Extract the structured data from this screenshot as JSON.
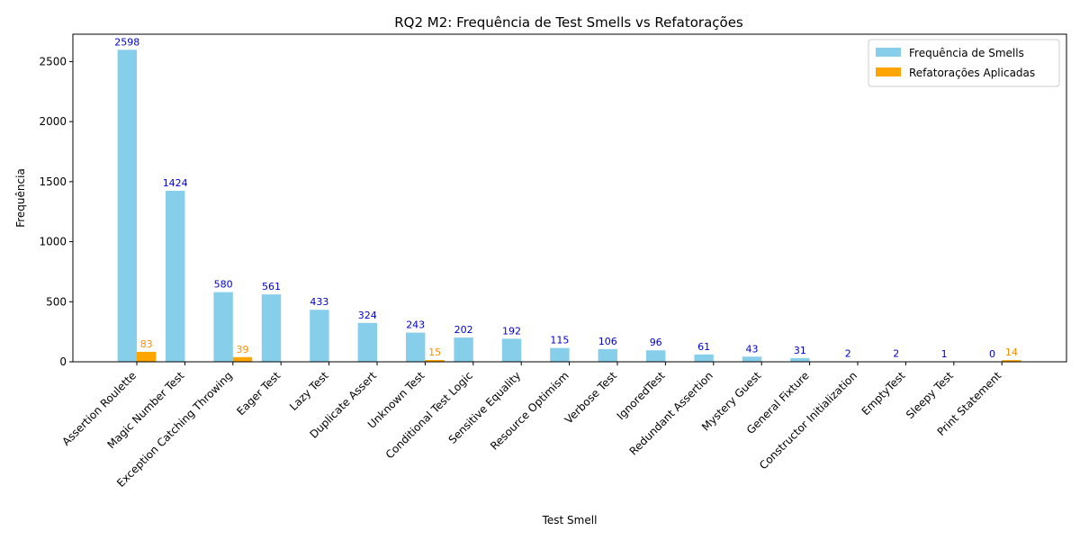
{
  "chart_data": {
    "type": "bar",
    "title": "RQ2 M2: Frequência de Test Smells vs Refatorações",
    "xlabel": "Test Smell",
    "ylabel": "Frequência",
    "ylim": [
      0,
      2728
    ],
    "yticks": [
      0,
      500,
      1000,
      1500,
      2000,
      2500
    ],
    "legend_position": "top-right",
    "grid": false,
    "categories": [
      "Assertion Roulette",
      "Magic Number Test",
      "Exception Catching Throwing",
      "Eager Test",
      "Lazy Test",
      "Duplicate Assert",
      "Unknown Test",
      "Conditional Test Logic",
      "Sensitive Equality",
      "Resource Optimism",
      "Verbose Test",
      "IgnoredTest",
      "Redundant Assertion",
      "Mystery Guest",
      "General Fixture",
      "Constructor Initialization",
      "EmptyTest",
      "Sleepy Test",
      "Print Statement"
    ],
    "series": [
      {
        "name": "Frequência de Smells",
        "color": "#87CEEB",
        "label_color": "#0000CD",
        "values": [
          2598,
          1424,
          580,
          561,
          433,
          324,
          243,
          202,
          192,
          115,
          106,
          96,
          61,
          43,
          31,
          2,
          2,
          1,
          0
        ],
        "labels": [
          "2598",
          "1424",
          "580",
          "561",
          "433",
          "324",
          "243",
          "202",
          "192",
          "115",
          "106",
          "96",
          "61",
          "43",
          "31",
          "2",
          "2",
          "1",
          "0"
        ]
      },
      {
        "name": "Refatorações Aplicadas",
        "color": "#FFA500",
        "label_color": "#FF8C00",
        "values": [
          83,
          0,
          39,
          0,
          0,
          0,
          15,
          0,
          0,
          0,
          0,
          0,
          0,
          0,
          0,
          0,
          0,
          0,
          14
        ],
        "labels": [
          "83",
          "",
          "39",
          "",
          "",
          "",
          "15",
          "",
          "",
          "",
          "",
          "",
          "",
          "",
          "",
          "",
          "",
          "",
          "14"
        ]
      }
    ]
  }
}
